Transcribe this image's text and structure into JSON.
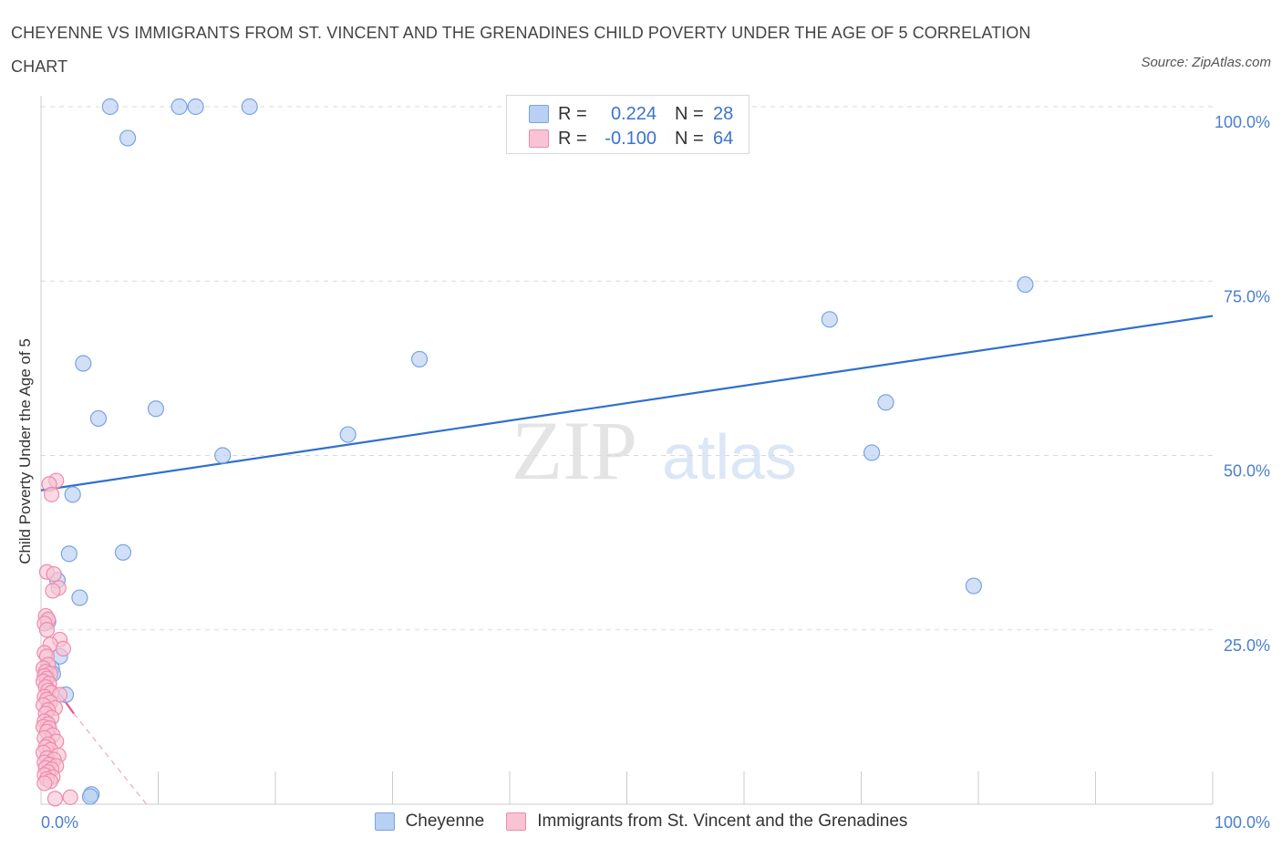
{
  "title": "CHEYENNE VS IMMIGRANTS FROM ST. VINCENT AND THE GRENADINES CHILD POVERTY UNDER THE AGE OF 5 CORRELATION CHART",
  "source": "Source: ZipAtlas.com",
  "watermark": {
    "zip": "ZIP",
    "atlas": "atlas"
  },
  "legend": {
    "r_label": "R =",
    "n_label": "N =",
    "rows": [
      {
        "name": "Cheyenne",
        "r": "0.224",
        "n": "28"
      },
      {
        "name": "Immigrants from St. Vincent and the Grenadines",
        "r": "-0.100",
        "n": "64"
      }
    ]
  },
  "colors": {
    "blue_fill": "#b8d0f3",
    "blue_stroke": "#7aa3e0",
    "blue_line": "#2f6fcf",
    "pink_fill": "#f8c4d4",
    "pink_stroke": "#ef8aac",
    "pink_line": "#e8588a",
    "tick_text": "#4a7fd0",
    "grid": "#d9d9d9"
  },
  "chart_data": {
    "type": "scatter",
    "title": "CHEYENNE VS IMMIGRANTS FROM ST. VINCENT AND THE GRENADINES CHILD POVERTY UNDER THE AGE OF 5 CORRELATION CHART",
    "xlabel": "",
    "ylabel": "Child Poverty Under the Age of 5",
    "xlim": [
      0,
      100
    ],
    "ylim": [
      0,
      100
    ],
    "x_tick_labels": [
      "0.0%",
      "100.0%"
    ],
    "y_ticks": [
      {
        "value": 100,
        "label": "100.0%"
      },
      {
        "value": 75,
        "label": "75.0%"
      },
      {
        "value": 50,
        "label": "50.0%"
      },
      {
        "value": 25,
        "label": "25.0%"
      }
    ],
    "series": [
      {
        "name": "Cheyenne",
        "color": "blue",
        "trend": {
          "x": [
            0,
            100
          ],
          "y": [
            45.0,
            70.0
          ]
        },
        "points": [
          [
            5.9,
            100.0
          ],
          [
            11.8,
            100.0
          ],
          [
            13.2,
            100.0
          ],
          [
            17.8,
            100.0
          ],
          [
            7.4,
            95.5
          ],
          [
            84.0,
            74.5
          ],
          [
            67.3,
            69.5
          ],
          [
            32.3,
            63.8
          ],
          [
            3.6,
            63.2
          ],
          [
            9.8,
            56.7
          ],
          [
            4.9,
            55.3
          ],
          [
            72.1,
            57.6
          ],
          [
            26.2,
            53.0
          ],
          [
            15.5,
            50.0
          ],
          [
            70.9,
            50.4
          ],
          [
            2.7,
            44.4
          ],
          [
            2.4,
            35.9
          ],
          [
            7.0,
            36.1
          ],
          [
            1.4,
            32.1
          ],
          [
            79.6,
            31.3
          ],
          [
            3.3,
            29.6
          ],
          [
            0.6,
            26.2
          ],
          [
            1.6,
            21.2
          ],
          [
            0.9,
            19.5
          ],
          [
            1.0,
            18.7
          ],
          [
            2.1,
            15.7
          ],
          [
            4.3,
            1.4
          ],
          [
            4.2,
            1.1
          ]
        ]
      },
      {
        "name": "Immigrants from St. Vincent and the Grenadines",
        "color": "pink",
        "trend": {
          "x": [
            0,
            2.8
          ],
          "y": [
            19.5,
            13.0
          ]
        },
        "trend_dashed": {
          "x": [
            2.8,
            9.0
          ],
          "y": [
            13.0,
            0.0
          ]
        },
        "points": [
          [
            1.3,
            46.4
          ],
          [
            0.7,
            45.9
          ],
          [
            0.9,
            44.4
          ],
          [
            0.5,
            33.3
          ],
          [
            1.1,
            33.0
          ],
          [
            1.5,
            31.0
          ],
          [
            1.0,
            30.6
          ],
          [
            0.4,
            27.0
          ],
          [
            0.6,
            26.5
          ],
          [
            0.3,
            25.9
          ],
          [
            0.5,
            25.0
          ],
          [
            1.6,
            23.6
          ],
          [
            0.8,
            22.9
          ],
          [
            1.9,
            22.3
          ],
          [
            0.3,
            21.7
          ],
          [
            0.5,
            21.2
          ],
          [
            0.6,
            20.0
          ],
          [
            0.2,
            19.5
          ],
          [
            0.4,
            19.0
          ],
          [
            0.8,
            18.7
          ],
          [
            0.3,
            18.4
          ],
          [
            0.5,
            18.0
          ],
          [
            0.2,
            17.6
          ],
          [
            0.7,
            17.3
          ],
          [
            0.4,
            16.8
          ],
          [
            0.6,
            16.3
          ],
          [
            0.9,
            16.0
          ],
          [
            1.6,
            15.7
          ],
          [
            0.3,
            15.4
          ],
          [
            0.5,
            15.0
          ],
          [
            0.8,
            14.6
          ],
          [
            0.2,
            14.2
          ],
          [
            1.2,
            13.8
          ],
          [
            0.6,
            13.5
          ],
          [
            0.4,
            13.0
          ],
          [
            0.9,
            12.4
          ],
          [
            0.3,
            11.9
          ],
          [
            0.6,
            11.5
          ],
          [
            0.2,
            11.1
          ],
          [
            0.7,
            10.9
          ],
          [
            0.5,
            10.4
          ],
          [
            1.0,
            9.9
          ],
          [
            0.3,
            9.5
          ],
          [
            1.3,
            9.0
          ],
          [
            0.6,
            8.6
          ],
          [
            0.4,
            8.2
          ],
          [
            0.8,
            7.8
          ],
          [
            0.2,
            7.4
          ],
          [
            1.5,
            7.0
          ],
          [
            0.5,
            6.6
          ],
          [
            1.1,
            6.4
          ],
          [
            0.3,
            6.0
          ],
          [
            0.7,
            5.7
          ],
          [
            1.3,
            5.5
          ],
          [
            0.4,
            5.2
          ],
          [
            0.9,
            5.0
          ],
          [
            0.6,
            4.6
          ],
          [
            0.3,
            4.2
          ],
          [
            1.0,
            3.9
          ],
          [
            0.5,
            3.6
          ],
          [
            0.8,
            3.3
          ],
          [
            0.3,
            3.0
          ],
          [
            1.2,
            0.8
          ],
          [
            2.5,
            1.0
          ]
        ]
      }
    ]
  }
}
